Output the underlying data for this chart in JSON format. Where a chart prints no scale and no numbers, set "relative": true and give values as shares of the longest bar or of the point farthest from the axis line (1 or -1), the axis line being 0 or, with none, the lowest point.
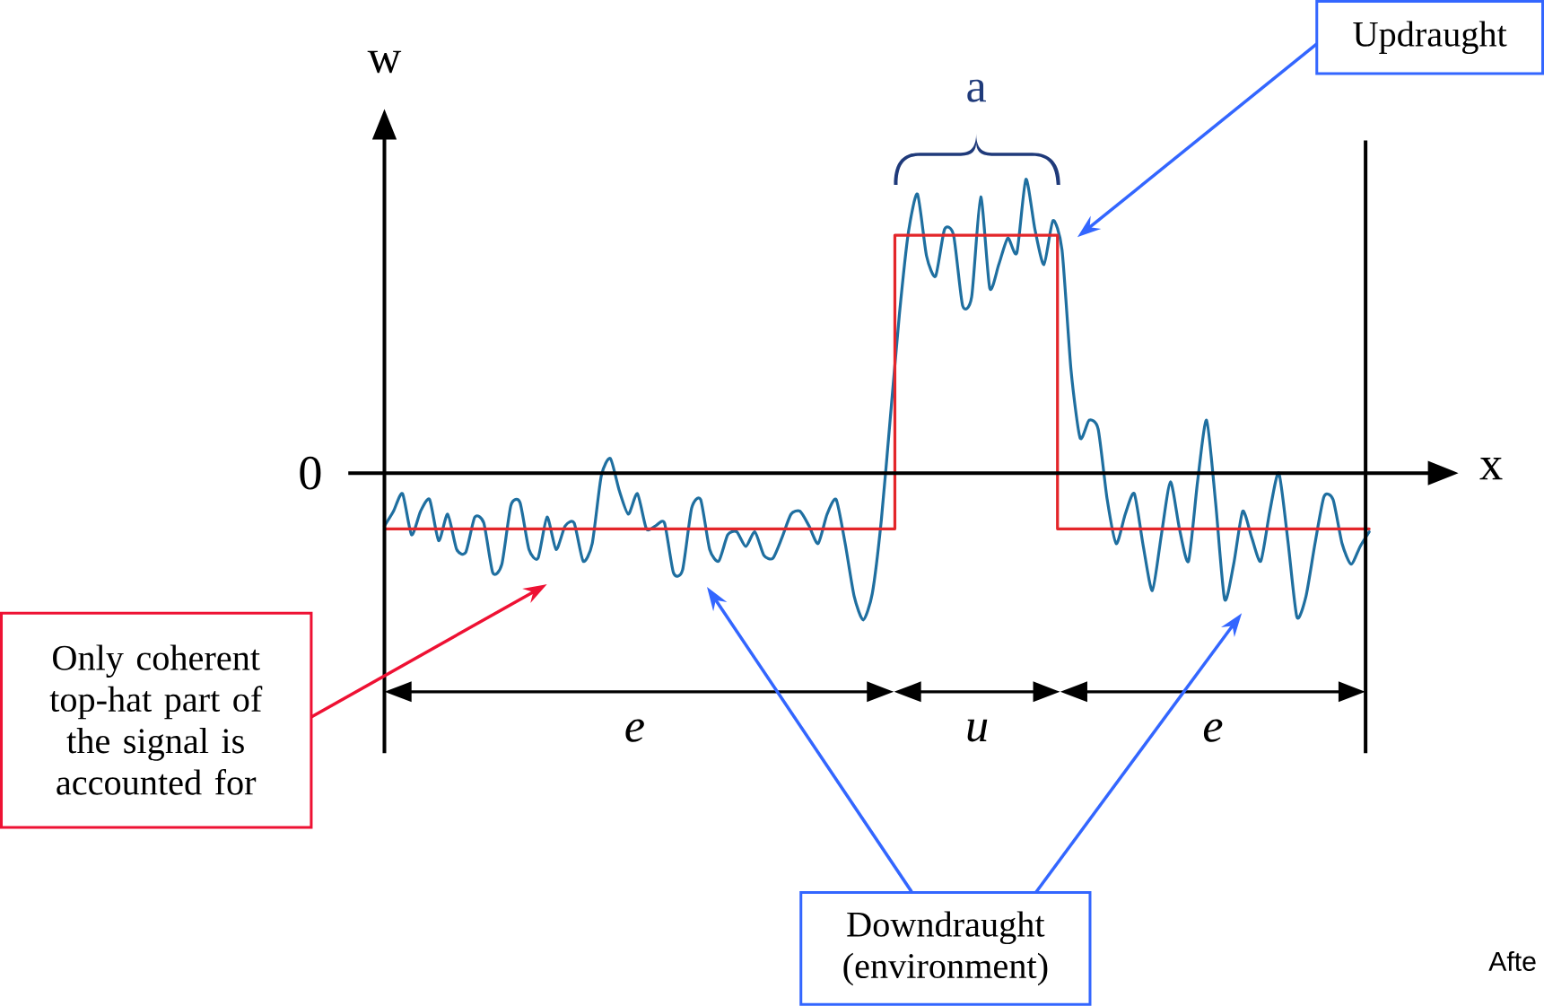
{
  "chart_data": {
    "type": "line",
    "relative": true,
    "xlabel": "x",
    "ylabel": "w",
    "categories": [
      null,
      null,
      null,
      null,
      null,
      null,
      null,
      null,
      null,
      null,
      null,
      null,
      null,
      null,
      null,
      null,
      null,
      null,
      null,
      null,
      null,
      null,
      null,
      null,
      null,
      null,
      null,
      null,
      null,
      null,
      null,
      null,
      null,
      null,
      null,
      null,
      null,
      null,
      null,
      null,
      null,
      null,
      null,
      null,
      null,
      null,
      null,
      null,
      null,
      null,
      null,
      null,
      null,
      null,
      null,
      null,
      null,
      null,
      null,
      null,
      null,
      null,
      null,
      null,
      null,
      null,
      null,
      null,
      null,
      null,
      null,
      null,
      null,
      null,
      null,
      null,
      null,
      null,
      null,
      null,
      null,
      null,
      null,
      null,
      null,
      null,
      null,
      null,
      null,
      null,
      null,
      null,
      null,
      null,
      null,
      null,
      null,
      null,
      null,
      null,
      null,
      null,
      null,
      null,
      null,
      null,
      null,
      null,
      null,
      null
    ],
    "series": [
      {
        "color": "#1f6fa0",
        "values": [
          -0.18,
          -0.13,
          -0.07,
          -0.21,
          -0.13,
          -0.09,
          -0.23,
          -0.14,
          -0.26,
          -0.27,
          -0.15,
          -0.17,
          -0.34,
          -0.31,
          -0.11,
          -0.1,
          -0.26,
          -0.29,
          -0.15,
          -0.26,
          -0.18,
          -0.17,
          -0.3,
          -0.24,
          -0.01,
          0.05,
          -0.06,
          -0.14,
          -0.07,
          -0.19,
          -0.18,
          -0.17,
          -0.34,
          -0.33,
          -0.12,
          -0.09,
          -0.26,
          -0.3,
          -0.21,
          -0.2,
          -0.25,
          -0.2,
          -0.28,
          -0.29,
          -0.22,
          -0.14,
          -0.13,
          -0.18,
          -0.24,
          -0.14,
          -0.09,
          -0.24,
          -0.42,
          -0.5,
          -0.41,
          -0.16,
          0.19,
          0.54,
          0.82,
          0.95,
          0.74,
          0.67,
          0.83,
          0.81,
          0.57,
          0.6,
          0.94,
          0.63,
          0.71,
          0.8,
          0.75,
          1.0,
          0.83,
          0.71,
          0.86,
          0.76,
          0.35,
          0.12,
          0.18,
          0.15,
          -0.09,
          -0.24,
          -0.14,
          -0.07,
          -0.25,
          -0.4,
          -0.21,
          -0.03,
          -0.19,
          -0.3,
          -0.03,
          0.18,
          -0.1,
          -0.43,
          -0.31,
          -0.13,
          -0.22,
          -0.3,
          -0.13,
          0.0,
          -0.23,
          -0.49,
          -0.42,
          -0.24,
          -0.08,
          -0.09,
          -0.24,
          -0.31,
          -0.25,
          -0.2
        ]
      },
      {
        "type": "step",
        "color": "#e3262a",
        "values": [
          -0.19,
          -0.19,
          -0.19,
          -0.19,
          -0.19,
          -0.19,
          -0.19,
          -0.19,
          -0.19,
          -0.19,
          -0.19,
          -0.19,
          -0.19,
          -0.19,
          -0.19,
          -0.19,
          -0.19,
          -0.19,
          -0.19,
          -0.19,
          -0.19,
          -0.19,
          -0.19,
          -0.19,
          -0.19,
          -0.19,
          -0.19,
          -0.19,
          -0.19,
          -0.19,
          -0.19,
          -0.19,
          -0.19,
          -0.19,
          -0.19,
          -0.19,
          -0.19,
          -0.19,
          -0.19,
          -0.19,
          -0.19,
          -0.19,
          -0.19,
          -0.19,
          -0.19,
          -0.19,
          -0.19,
          -0.19,
          -0.19,
          -0.19,
          -0.19,
          -0.19,
          -0.19,
          -0.19,
          -0.19,
          -0.19,
          -0.19,
          0.81,
          0.81,
          0.81,
          0.81,
          0.81,
          0.81,
          0.81,
          0.81,
          0.81,
          0.81,
          0.81,
          0.81,
          0.81,
          0.81,
          0.81,
          0.81,
          0.81,
          0.81,
          -0.19,
          -0.19,
          -0.19,
          -0.19,
          -0.19,
          -0.19,
          -0.19,
          -0.19,
          -0.19,
          -0.19,
          -0.19,
          -0.19,
          -0.19,
          -0.19,
          -0.19,
          -0.19,
          -0.19,
          -0.19,
          -0.19,
          -0.19,
          -0.19,
          -0.19,
          -0.19,
          -0.19,
          -0.19,
          -0.19,
          -0.19,
          -0.19,
          -0.19,
          -0.19,
          -0.19,
          -0.19,
          -0.19,
          -0.19,
          -0.19
        ]
      }
    ],
    "annotations": [
      "0",
      "a",
      "e",
      "u",
      "e",
      "Updraught",
      "Downdraught (environment)",
      "Only coherent top-hat part of the signal is accounted for",
      "Afte"
    ]
  }
}
